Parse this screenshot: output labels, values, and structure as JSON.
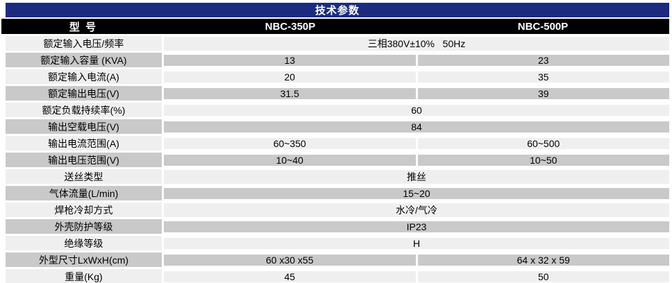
{
  "title": "技术参数",
  "header": {
    "model_label": "型  号",
    "models": [
      "NBC-350P",
      "NBC-500P"
    ]
  },
  "rows": [
    {
      "label": "额定输入电压/频率",
      "type": "span",
      "value": "三相380V±10%   50Hz"
    },
    {
      "label": "额定输入容量 (KVA)",
      "type": "split",
      "values": [
        "13",
        "23"
      ]
    },
    {
      "label": "额定输入电流(A)",
      "type": "split",
      "values": [
        "20",
        "35"
      ]
    },
    {
      "label": "额定输出电压(V)",
      "type": "split",
      "values": [
        "31.5",
        "39"
      ]
    },
    {
      "label": "额定负载持续率(%)",
      "type": "span",
      "value": "60"
    },
    {
      "label": "输出空载电压(V)",
      "type": "span",
      "value": "84"
    },
    {
      "label": "输出电流范围(A)",
      "type": "split",
      "values": [
        "60~350",
        "60~500"
      ]
    },
    {
      "label": "输出电压范围(V)",
      "type": "split",
      "values": [
        "10~40",
        "10~50"
      ]
    },
    {
      "label": "送丝类型",
      "type": "span",
      "value": "推丝"
    },
    {
      "label": "气体流量(L/min)",
      "type": "span",
      "value": "15~20"
    },
    {
      "label": "焊枪冷却方式",
      "type": "span",
      "value": "水冷/气冷"
    },
    {
      "label": "外壳防护等级",
      "type": "span",
      "value": "IP23"
    },
    {
      "label": "绝缘等级",
      "type": "span",
      "value": "H"
    },
    {
      "label": "外型尺寸LxWxH(cm)",
      "type": "split",
      "values": [
        "60 x30 x55",
        "64 x 32 x 59"
      ]
    },
    {
      "label": "重量(Kg)",
      "type": "split",
      "values": [
        "45",
        "50"
      ]
    }
  ],
  "colors": {
    "title_bar_bg": "#1b2b80",
    "model_row_bg": "#000000",
    "row_light_bg": "#efefef",
    "row_dark_bg": "#c9c9c9",
    "header_text": "#ffffff",
    "body_text": "#000000"
  }
}
